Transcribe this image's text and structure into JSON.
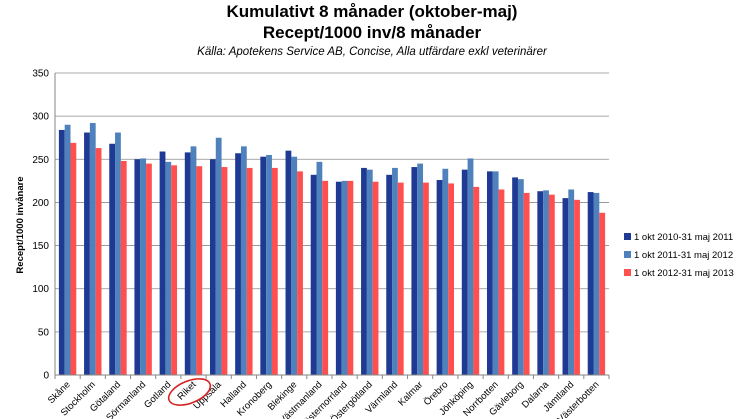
{
  "chart_data": {
    "type": "bar",
    "title": "Kumulativt 8 månader (oktober-maj)",
    "title2": "Recept/1000 inv/8 månader",
    "subtitle": "Källa: Apotekens Service AB, Concise, Alla utfärdare exkl veterinärer",
    "ylabel": "Recept/1000 invånare",
    "ylim": [
      0,
      350
    ],
    "yticks": [
      0,
      50,
      100,
      150,
      200,
      250,
      300,
      350
    ],
    "grid": true,
    "legend_position": "right",
    "highlighted_category": "Riket",
    "categories": [
      "Skåne",
      "Stockholm",
      "Götaland",
      "Sörmanland",
      "Gotland",
      "Riket",
      "Uppsala",
      "Halland",
      "Kronoberg",
      "Blekinge",
      "Västmanland",
      "Västernorrland",
      "Östergötland",
      "Värmland",
      "Kalmar",
      "Örebro",
      "Jönköping",
      "Norrbotten",
      "Gävleborg",
      "Dalarna",
      "Jämtland",
      "Västerbotten"
    ],
    "series": [
      {
        "name": "1 okt 2010-31 maj 2011",
        "color": "#1f3a93",
        "values": [
          284,
          281,
          268,
          250,
          259,
          258,
          250,
          257,
          253,
          260,
          232,
          224,
          240,
          232,
          241,
          226,
          238,
          236,
          229,
          213,
          205,
          212
        ]
      },
      {
        "name": "1 okt 2011-31 maj 2012",
        "color": "#4f81bd",
        "values": [
          290,
          292,
          281,
          251,
          247,
          265,
          275,
          265,
          255,
          253,
          247,
          225,
          238,
          240,
          245,
          239,
          251,
          236,
          227,
          214,
          215,
          211
        ]
      },
      {
        "name": "1 okt 2012-31 maj 2013",
        "color": "#ff4f4f",
        "values": [
          269,
          263,
          248,
          245,
          243,
          242,
          241,
          240,
          240,
          236,
          225,
          225,
          224,
          223,
          223,
          222,
          218,
          215,
          211,
          209,
          203,
          188
        ]
      }
    ]
  }
}
